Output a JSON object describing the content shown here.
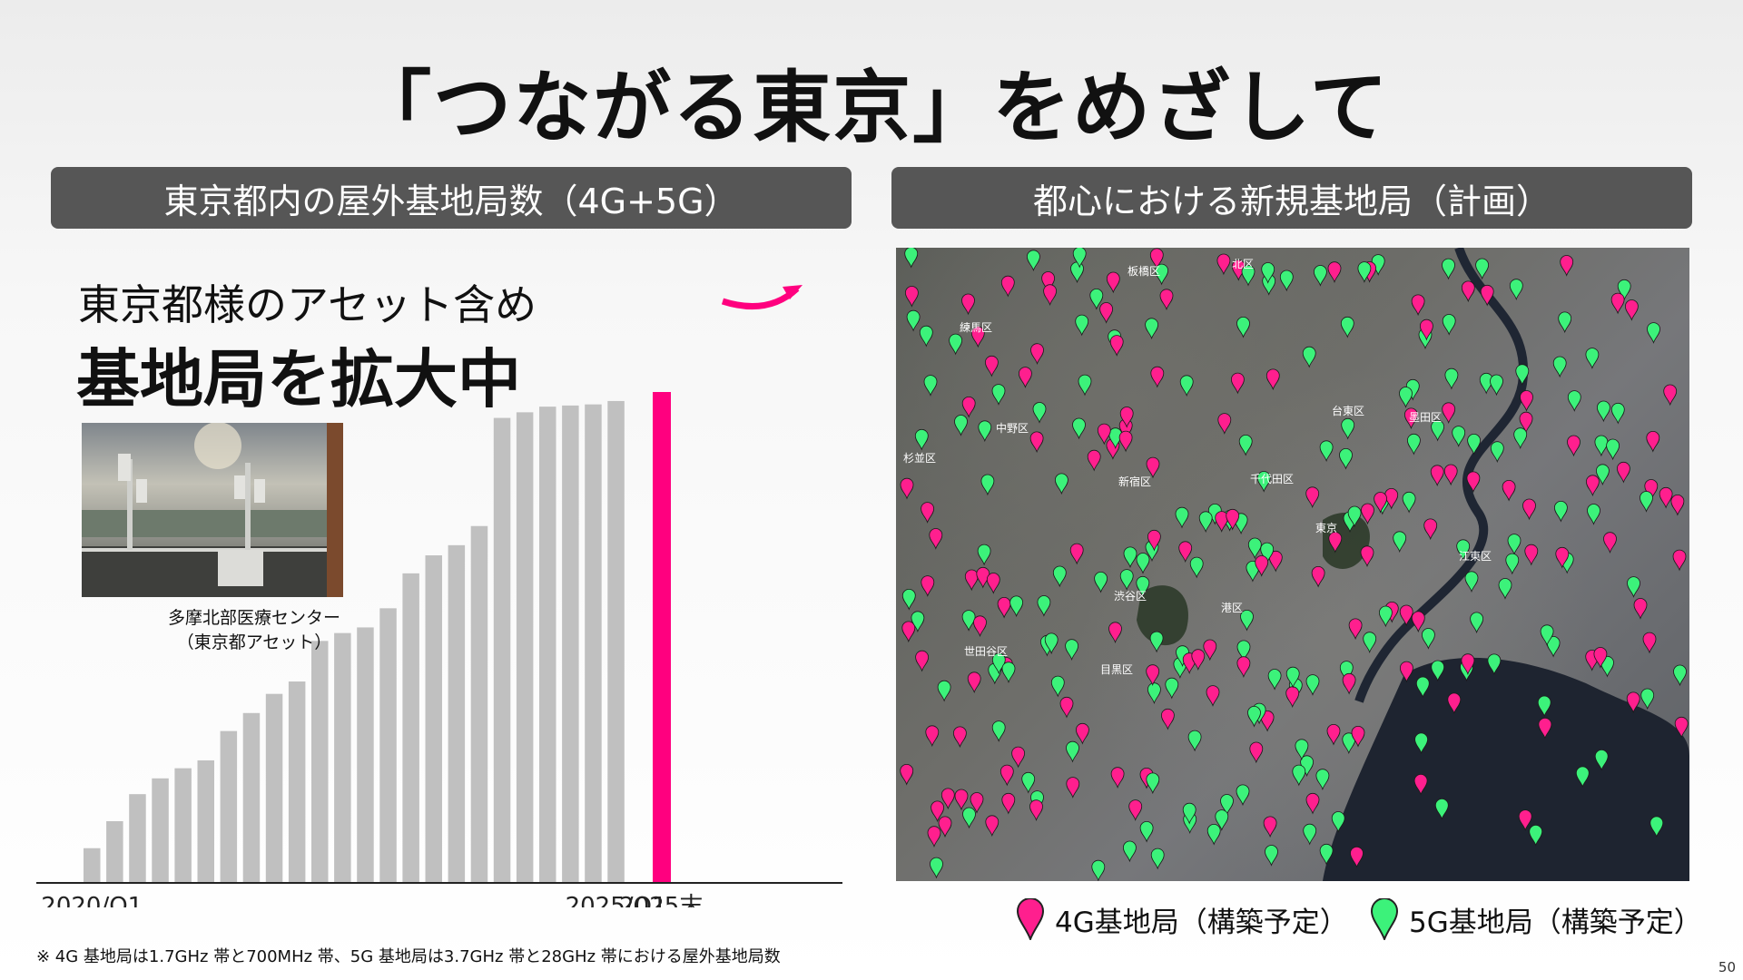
{
  "title": "「つながる東京」をめざして",
  "left_header": "東京都内の屋外基地局数（4G+5G）",
  "right_header": "都心における新規基地局（計画）",
  "subtitle_small": "東京都様のアセット含め",
  "subtitle_big": "基地局を拡大中",
  "photo": {
    "caption_line1": "多摩北部医療センター",
    "caption_line2": "（東京都アセット）"
  },
  "colors": {
    "bar": "#c0c0c0",
    "highlight": "#ff007f",
    "pin_4g": "#ff1f8e",
    "pin_5g": "#3cf27a",
    "header_bg": "#565656"
  },
  "chart_data": {
    "type": "bar",
    "categories": [
      "2020/Q1",
      "",
      "",
      "",
      "",
      "",
      "",
      "",
      "",
      "",
      "",
      "",
      "",
      "",
      "",
      "",
      "",
      "",
      "",
      "",
      "",
      "",
      "",
      "2025/Q1",
      "2025末"
    ],
    "values": [
      30,
      54,
      78,
      92,
      101,
      108,
      134,
      150,
      167,
      178,
      214,
      221,
      226,
      243,
      274,
      290,
      299,
      316,
      412,
      417,
      422,
      423,
      424,
      427,
      435
    ],
    "highlight_last": true,
    "ylim": [
      0,
      435
    ],
    "x_tick_labels": [
      {
        "index": 0,
        "label": "2020/Q1"
      },
      {
        "index": 23,
        "label": "2025/Q1"
      },
      {
        "index": 24,
        "label": "2025末"
      }
    ]
  },
  "map": {
    "district_labels": [
      "板橋区",
      "北区",
      "練馬区",
      "中野区",
      "杉並区",
      "新宿区",
      "千代田区",
      "台東区",
      "墨田区",
      "東京",
      "港区",
      "江東区",
      "渋谷区",
      "世田谷区",
      "目黒区"
    ]
  },
  "legend": {
    "label_4g": "4G基地局（構築予定）",
    "label_5g": "5G基地局（構築予定）"
  },
  "footnote": "※ 4G 基地局は1.7GHz 帯と700MHz 帯、5G 基地局は3.7GHz 帯と28GHz 帯における屋外基地局数",
  "page_number": "50"
}
